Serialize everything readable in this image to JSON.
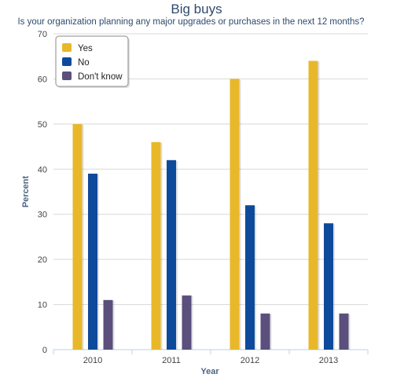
{
  "chart_data": {
    "type": "bar",
    "title": "Big buys",
    "subtitle": "Is your organization planning any major upgrades or purchases in the next 12 months?",
    "xlabel": "Year",
    "ylabel": "Percent",
    "categories": [
      "2010",
      "2011",
      "2012",
      "2013"
    ],
    "ylim": [
      0,
      70
    ],
    "yticks": [
      0,
      10,
      20,
      30,
      40,
      50,
      60,
      70
    ],
    "grid": true,
    "legend_placement": "top-left",
    "series": [
      {
        "name": "Yes",
        "color": "#e8b82a",
        "values": [
          50,
          46,
          60,
          64
        ]
      },
      {
        "name": "No",
        "color": "#0d4a9b",
        "values": [
          39,
          42,
          32,
          28
        ]
      },
      {
        "name": "Don't know",
        "color": "#5b4f7d",
        "values": [
          11,
          12,
          8,
          8
        ]
      }
    ]
  }
}
